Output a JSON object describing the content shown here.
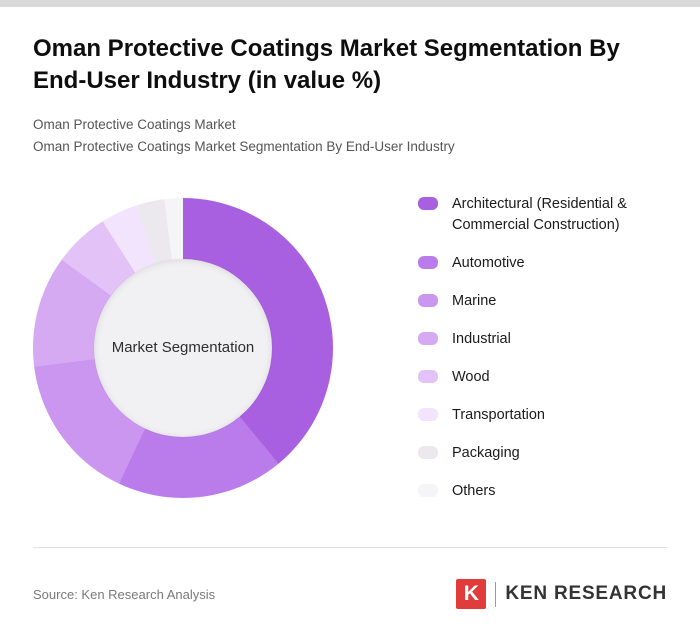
{
  "header": {
    "title": "Oman Protective Coatings Market Segmentation By End-User Industry (in value %)",
    "subtitle_line1": "Oman Protective Coatings Market",
    "subtitle_line2": "Oman Protective Coatings Market Segmentation By End-User Industry"
  },
  "chart_data": {
    "type": "pie",
    "donut": true,
    "title": "Oman Protective Coatings Market Segmentation By End-User Industry (in value %)",
    "center_label": "Market Segmentation",
    "legend_position": "right",
    "categories": [
      "Architectural (Residential & Commercial Construction)",
      "Automotive",
      "Marine",
      "Industrial",
      "Wood",
      "Transportation",
      "Packaging",
      "Others"
    ],
    "values": [
      39,
      18,
      16,
      12,
      6,
      4,
      3,
      2
    ],
    "colors": [
      "#a85fe0",
      "#ba7ceb",
      "#ca96f0",
      "#d6a9f3",
      "#e2c2f7",
      "#f1e4fc",
      "#ebe9ed",
      "#f5f4f6"
    ]
  },
  "footer": {
    "source": "Source: Ken Research Analysis",
    "logo_letter": "K",
    "logo_text": "KEN RESEARCH",
    "logo_color": "#e03c3c"
  }
}
